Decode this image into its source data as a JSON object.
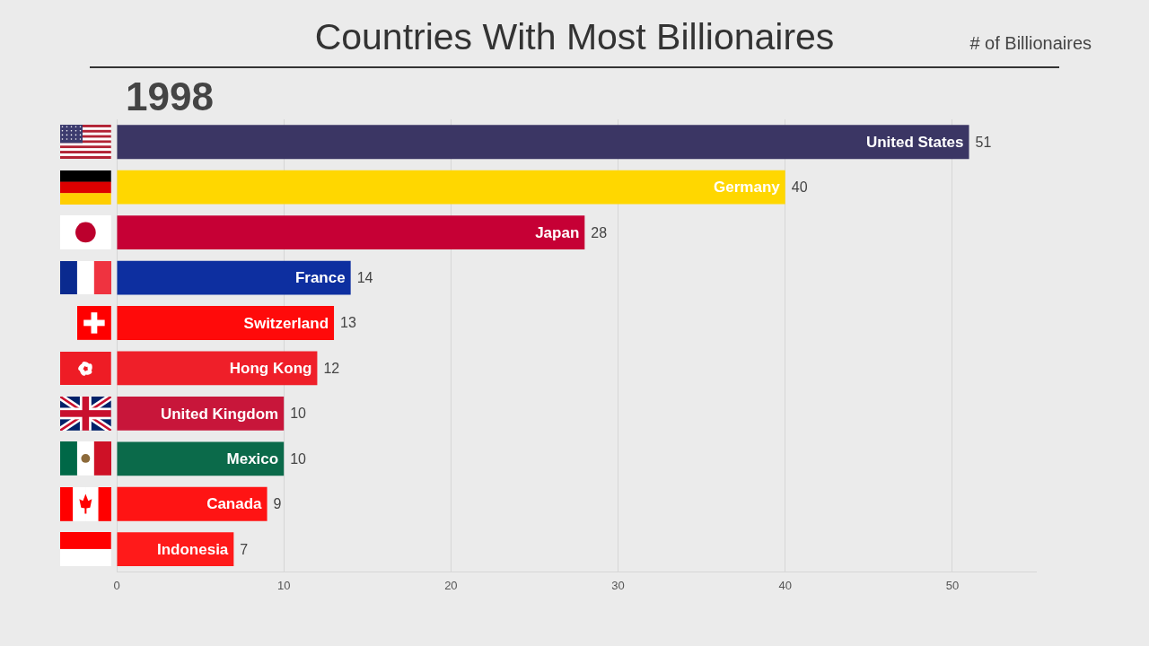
{
  "chart_data": {
    "type": "bar",
    "orientation": "horizontal",
    "title": "Countries With Most Billionaires",
    "subtitle": "# of Billionaires",
    "annotations": [
      "1998"
    ],
    "categories": [
      "United States",
      "Germany",
      "Japan",
      "France",
      "Switzerland",
      "Hong Kong",
      "United Kingdom",
      "Mexico",
      "Canada",
      "Indonesia"
    ],
    "values": [
      51,
      40,
      28,
      14,
      13,
      12,
      10,
      10,
      9,
      7
    ],
    "colors": [
      "#3b3664",
      "#ffd700",
      "#c60035",
      "#0d2fa0",
      "#ff0a0a",
      "#ef1f29",
      "#c8163a",
      "#0b6a4a",
      "#ff1414",
      "#ff1a1a"
    ],
    "xlim": [
      0,
      55
    ],
    "xticks": [
      0,
      10,
      20,
      30,
      40,
      50
    ],
    "grid": "x",
    "tick_labels": "x",
    "data_labels": true
  }
}
